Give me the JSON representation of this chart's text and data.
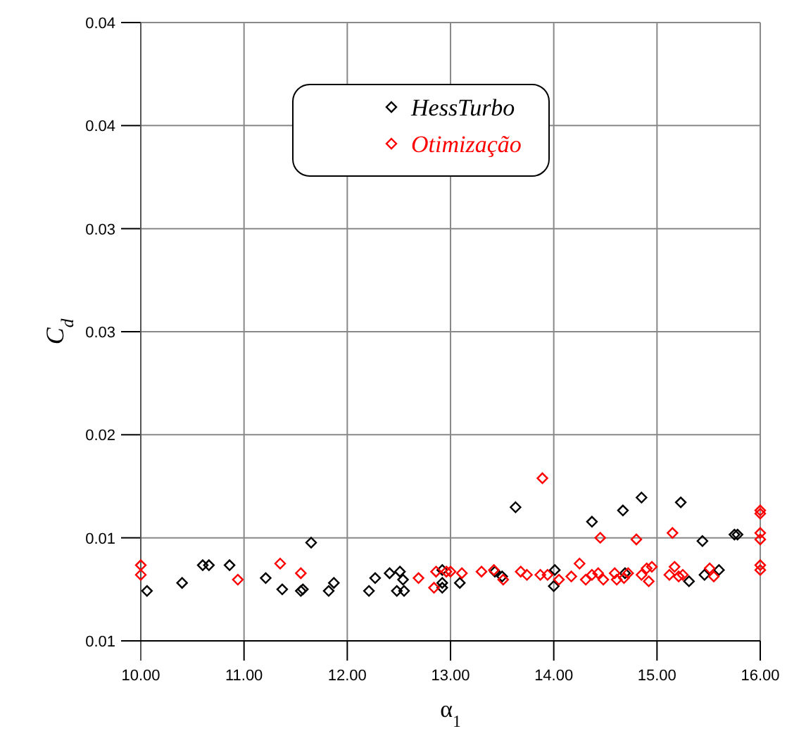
{
  "chart_data": {
    "type": "scatter",
    "xlabel": "α$_{1}$",
    "ylabel": "C$_{d}$",
    "xlim": [
      10,
      16
    ],
    "ylim": [
      0.006,
      0.0444
    ],
    "xticks": [
      {
        "value": 10,
        "label": "10.00"
      },
      {
        "value": 11,
        "label": "11.00"
      },
      {
        "value": 12,
        "label": "12.00"
      },
      {
        "value": 13,
        "label": "13.00"
      },
      {
        "value": 14,
        "label": "14.00"
      },
      {
        "value": 15,
        "label": "15.00"
      },
      {
        "value": 16,
        "label": "16.00"
      }
    ],
    "yticks": [
      {
        "value": 0.006,
        "label": "0.01"
      },
      {
        "value": 0.0124,
        "label": "0.01"
      },
      {
        "value": 0.0188,
        "label": "0.02"
      },
      {
        "value": 0.0252,
        "label": "0.03"
      },
      {
        "value": 0.0316,
        "label": "0.03"
      },
      {
        "value": 0.038,
        "label": "0.04"
      },
      {
        "value": 0.0444,
        "label": "0.04"
      }
    ],
    "grid": true,
    "legend": "top",
    "marker": "diamond",
    "series": [
      {
        "name": "HessTurbo",
        "color": "#000000",
        "x": [
          10.06,
          10.4,
          10.6,
          10.66,
          10.86,
          11.21,
          11.37,
          11.55,
          11.57,
          11.65,
          11.82,
          11.87,
          12.21,
          12.27,
          12.41,
          12.51,
          12.54,
          12.48,
          12.55,
          12.92,
          12.92,
          12.92,
          13.09,
          13.43,
          13.5,
          13.63,
          14.01,
          14,
          14.37,
          14.67,
          14.69,
          14.85,
          15.23,
          15.31,
          15.44,
          15.46,
          15.6,
          15.75,
          15.78
        ],
        "values": [
          0.0091,
          0.0096,
          0.0107,
          0.0107,
          0.0107,
          0.0099,
          0.0092,
          0.0091,
          0.0092,
          0.0121,
          0.0091,
          0.0096,
          0.0091,
          0.0099,
          0.0102,
          0.0103,
          0.0098,
          0.0091,
          0.0091,
          0.0104,
          0.0096,
          0.0093,
          0.0096,
          0.0103,
          0.01,
          0.0143,
          0.0104,
          0.0094,
          0.0134,
          0.0141,
          0.0102,
          0.0149,
          0.0146,
          0.0097,
          0.0122,
          0.0101,
          0.0104,
          0.0126,
          0.0126
        ]
      },
      {
        "name": "Otimização",
        "color": "#ff0000",
        "x": [
          10,
          10,
          10.94,
          11.35,
          11.55,
          12.69,
          12.84,
          12.86,
          12.96,
          13,
          13.11,
          13.3,
          13.42,
          13.51,
          13.68,
          13.74,
          13.89,
          13.87,
          13.94,
          14.05,
          14.17,
          14.25,
          14.31,
          14.37,
          14.43,
          14.45,
          14.48,
          14.59,
          14.61,
          14.68,
          14.72,
          14.8,
          14.85,
          14.9,
          14.92,
          14.95,
          15.12,
          15.15,
          15.17,
          15.21,
          15.25,
          15.51,
          15.55,
          16,
          16,
          16,
          16,
          16,
          16
        ],
        "values": [
          0.0107,
          0.0101,
          0.0098,
          0.0108,
          0.0102,
          0.0099,
          0.0093,
          0.0103,
          0.0103,
          0.0103,
          0.0102,
          0.0103,
          0.0104,
          0.0098,
          0.0103,
          0.0101,
          0.0161,
          0.0101,
          0.0101,
          0.0098,
          0.01,
          0.0108,
          0.0098,
          0.0101,
          0.0102,
          0.0124,
          0.0098,
          0.0102,
          0.0098,
          0.0099,
          0.0102,
          0.0123,
          0.0101,
          0.0105,
          0.0097,
          0.0106,
          0.0101,
          0.0127,
          0.0106,
          0.01,
          0.0101,
          0.0105,
          0.01,
          0.0141,
          0.0139,
          0.0127,
          0.0123,
          0.0107,
          0.0104
        ]
      }
    ]
  }
}
